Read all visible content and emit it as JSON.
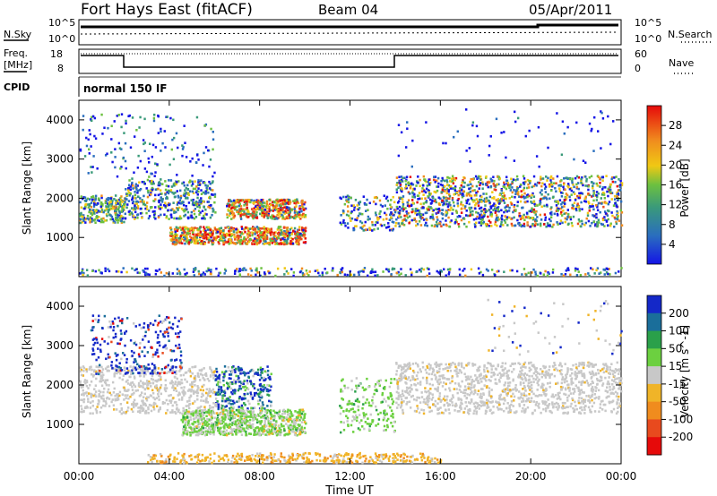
{
  "header": {
    "station": "Fort Hays East (fitACF)",
    "beam": "Beam 04",
    "date": "05/Apr/2011"
  },
  "strips": {
    "nsky_label": "N.Sky",
    "nsky_top": "10^5",
    "nsky_bottom": "10^0",
    "nsearch_label": "N.Search",
    "nsearch_top": "10^5",
    "nsearch_bottom": "10^0",
    "freq_label_1": "Freq.",
    "freq_label_2": "[MHz]",
    "freq_top": "18",
    "freq_bottom": "8",
    "nave_label": "Nave",
    "nave_top": "60",
    "nave_bottom": "0",
    "cpid_label": "CPID",
    "cpid_value": "normal 150 IF"
  },
  "chart_data": [
    {
      "type": "heatmap",
      "quantity": "Power",
      "ylabel": "Slant Range [km]",
      "yticks": [
        "1000",
        "2000",
        "3000",
        "4000"
      ],
      "colorbar_label": "Power [dB]",
      "colorbar_ticks": [
        "4",
        "8",
        "12",
        "16",
        "20",
        "24",
        "28"
      ],
      "colors": [
        "#1414e6",
        "#2a6ebe",
        "#3a9a7a",
        "#6cc040",
        "#f0c814",
        "#f08c1e",
        "#e84a1e",
        "#e60a0a"
      ]
    },
    {
      "type": "heatmap",
      "quantity": "Velocity",
      "ylabel": "Slant Range [km]",
      "yticks": [
        "1000",
        "2000",
        "3000",
        "4000"
      ],
      "colorbar_label": "Velocity [m s^-1]",
      "colorbar_ticks": [
        "200",
        "100",
        "50",
        "15",
        "-15",
        "-50",
        "-100",
        "-200"
      ],
      "colors": [
        "#1428c8",
        "#1a6e9a",
        "#2aa04a",
        "#6cd040",
        "#c8c8c8",
        "#f0b428",
        "#f08c1e",
        "#e84a1e",
        "#e60a0a"
      ],
      "xlabel": "Time UT",
      "xticks": [
        "00:00",
        "04:00",
        "08:00",
        "12:00",
        "16:00",
        "20:00",
        "00:00"
      ]
    }
  ]
}
